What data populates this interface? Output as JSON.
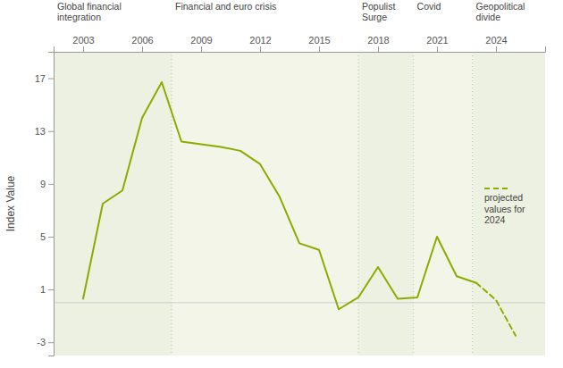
{
  "chart_data": {
    "type": "line",
    "ylabel": "Index Value",
    "xlim": [
      2001.5,
      2026.5
    ],
    "xticks": [
      2003,
      2006,
      2009,
      2012,
      2015,
      2018,
      2021,
      2024
    ],
    "ylim": [
      -4,
      19
    ],
    "yticks": [
      -3,
      1,
      5,
      9,
      13,
      17
    ],
    "grid": false,
    "legend": "right",
    "series": [
      {
        "x": [
          2003,
          2004,
          2005,
          2006,
          2007,
          2008,
          2009,
          2010,
          2011,
          2012,
          2013,
          2014,
          2015,
          2016,
          2017,
          2018,
          2019,
          2020,
          2021,
          2022,
          2023
        ],
        "values": [
          0.3,
          7.5,
          8.5,
          14.0,
          16.7,
          12.2,
          12.0,
          11.8,
          11.5,
          10.5,
          8.0,
          4.5,
          4.0,
          -0.5,
          0.4,
          2.7,
          0.3,
          0.4,
          5.0,
          2.0,
          1.5
        ],
        "color": "#8aab00",
        "line_style": "solid"
      },
      {
        "name": "projected\nvalues for\n2024",
        "x": [
          2023,
          2024,
          2025
        ],
        "values": [
          1.5,
          0.2,
          -2.5
        ],
        "color": "#8aab00",
        "line_style": "dashed"
      }
    ],
    "regions": [
      {
        "xmin": 2001.5,
        "xmax": 2007.5,
        "label": "Global financial\nintegration",
        "color": "#edf1e1"
      },
      {
        "xmin": 2007.5,
        "xmax": 2017.0,
        "label": "Financial and euro crisis",
        "color": "#f2f5e8"
      },
      {
        "xmin": 2017.0,
        "xmax": 2019.8,
        "label": "Populist\nSurge",
        "color": "#edf1e1"
      },
      {
        "xmin": 2019.8,
        "xmax": 2022.8,
        "label": "Covid",
        "color": "#f2f5e8"
      },
      {
        "xmin": 2022.8,
        "xmax": 2026.5,
        "label": "Geopolitical\ndivide",
        "color": "#edf1e1"
      }
    ],
    "vlines": [
      2007.5,
      2017.0,
      2019.8,
      2022.8
    ],
    "hlines": [
      0
    ]
  }
}
